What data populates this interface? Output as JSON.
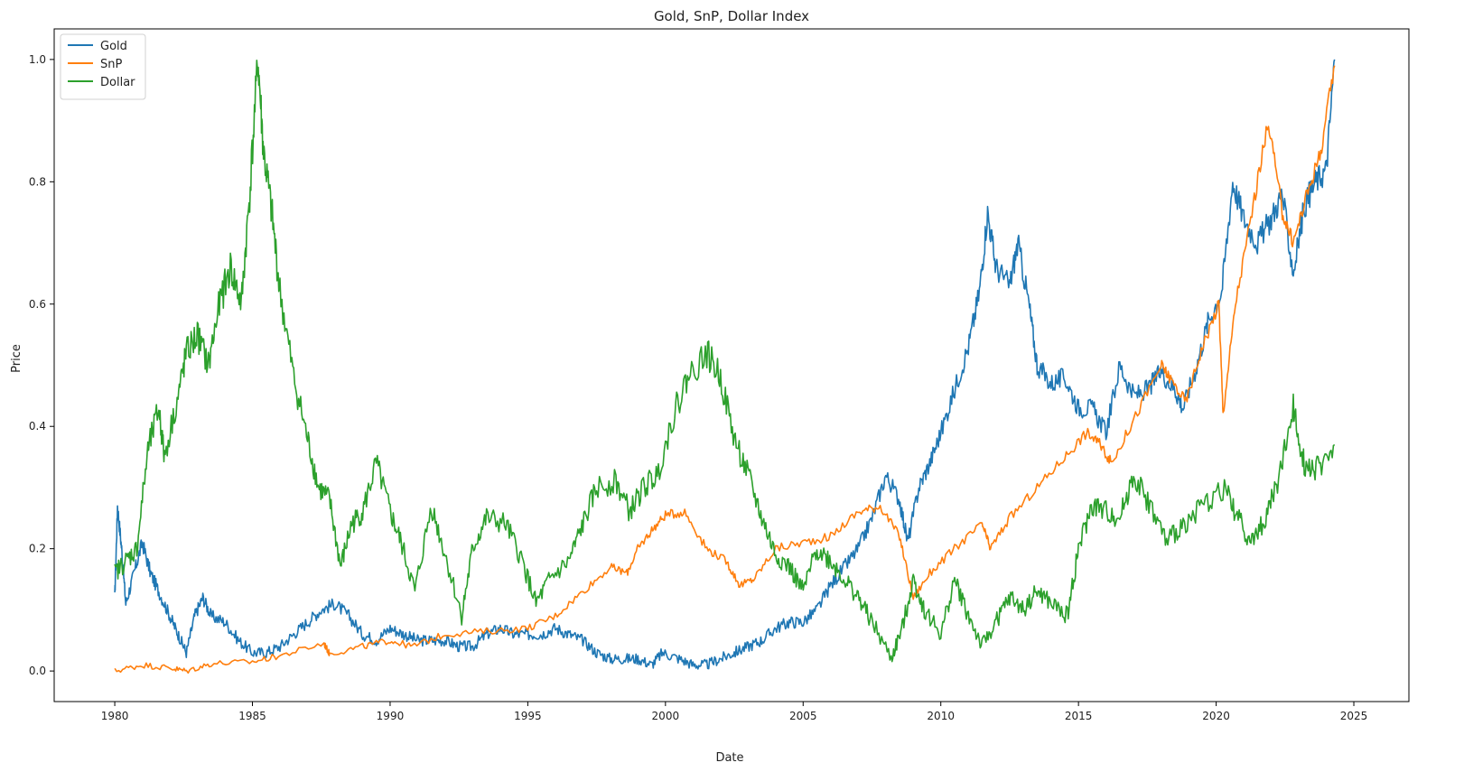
{
  "chart_data": {
    "type": "line",
    "title": "Gold, SnP, Dollar Index",
    "xlabel": "Date",
    "ylabel": "Price",
    "xlim": [
      1977.8,
      2027.0
    ],
    "ylim": [
      -0.05,
      1.05
    ],
    "xticks": [
      1980,
      1985,
      1990,
      1995,
      2000,
      2005,
      2010,
      2015,
      2020,
      2025
    ],
    "yticks": [
      0.0,
      0.2,
      0.4,
      0.6,
      0.8,
      1.0
    ],
    "grid": false,
    "legend_position": "top-left",
    "series": [
      {
        "name": "Gold",
        "color": "#1f77b4",
        "points": [
          [
            1980.0,
            0.12
          ],
          [
            1980.1,
            0.27
          ],
          [
            1980.25,
            0.2
          ],
          [
            1980.4,
            0.11
          ],
          [
            1980.7,
            0.16
          ],
          [
            1981.0,
            0.21
          ],
          [
            1981.3,
            0.16
          ],
          [
            1981.6,
            0.13
          ],
          [
            1982.0,
            0.09
          ],
          [
            1982.3,
            0.06
          ],
          [
            1982.6,
            0.03
          ],
          [
            1982.9,
            0.09
          ],
          [
            1983.2,
            0.12
          ],
          [
            1983.5,
            0.09
          ],
          [
            1984.0,
            0.08
          ],
          [
            1984.5,
            0.05
          ],
          [
            1985.0,
            0.03
          ],
          [
            1985.5,
            0.03
          ],
          [
            1986.0,
            0.04
          ],
          [
            1986.5,
            0.06
          ],
          [
            1987.0,
            0.08
          ],
          [
            1987.5,
            0.1
          ],
          [
            1988.0,
            0.11
          ],
          [
            1988.5,
            0.09
          ],
          [
            1989.0,
            0.06
          ],
          [
            1989.5,
            0.05
          ],
          [
            1990.0,
            0.07
          ],
          [
            1990.5,
            0.06
          ],
          [
            1991.0,
            0.05
          ],
          [
            1991.5,
            0.05
          ],
          [
            1992.0,
            0.05
          ],
          [
            1992.5,
            0.04
          ],
          [
            1993.0,
            0.04
          ],
          [
            1993.5,
            0.06
          ],
          [
            1994.0,
            0.07
          ],
          [
            1994.5,
            0.06
          ],
          [
            1995.0,
            0.06
          ],
          [
            1995.5,
            0.06
          ],
          [
            1996.0,
            0.07
          ],
          [
            1996.5,
            0.06
          ],
          [
            1997.0,
            0.05
          ],
          [
            1997.5,
            0.03
          ],
          [
            1998.0,
            0.02
          ],
          [
            1998.5,
            0.02
          ],
          [
            1999.0,
            0.02
          ],
          [
            1999.5,
            0.01
          ],
          [
            1999.9,
            0.03
          ],
          [
            2000.5,
            0.02
          ],
          [
            2001.0,
            0.01
          ],
          [
            2001.5,
            0.01
          ],
          [
            2002.0,
            0.02
          ],
          [
            2002.5,
            0.03
          ],
          [
            2003.0,
            0.04
          ],
          [
            2003.5,
            0.05
          ],
          [
            2004.0,
            0.07
          ],
          [
            2004.5,
            0.08
          ],
          [
            2005.0,
            0.08
          ],
          [
            2005.5,
            0.1
          ],
          [
            2006.0,
            0.14
          ],
          [
            2006.5,
            0.17
          ],
          [
            2007.0,
            0.2
          ],
          [
            2007.5,
            0.25
          ],
          [
            2008.0,
            0.32
          ],
          [
            2008.5,
            0.28
          ],
          [
            2008.8,
            0.21
          ],
          [
            2009.2,
            0.3
          ],
          [
            2009.6,
            0.34
          ],
          [
            2010.0,
            0.39
          ],
          [
            2010.5,
            0.46
          ],
          [
            2011.0,
            0.53
          ],
          [
            2011.4,
            0.62
          ],
          [
            2011.7,
            0.75
          ],
          [
            2012.0,
            0.66
          ],
          [
            2012.5,
            0.63
          ],
          [
            2012.8,
            0.7
          ],
          [
            2013.2,
            0.6
          ],
          [
            2013.5,
            0.5
          ],
          [
            2014.0,
            0.47
          ],
          [
            2014.5,
            0.48
          ],
          [
            2015.0,
            0.43
          ],
          [
            2015.5,
            0.43
          ],
          [
            2016.0,
            0.39
          ],
          [
            2016.5,
            0.5
          ],
          [
            2017.0,
            0.45
          ],
          [
            2017.5,
            0.46
          ],
          [
            2018.0,
            0.49
          ],
          [
            2018.5,
            0.46
          ],
          [
            2018.8,
            0.43
          ],
          [
            2019.3,
            0.5
          ],
          [
            2019.7,
            0.57
          ],
          [
            2020.2,
            0.62
          ],
          [
            2020.6,
            0.8
          ],
          [
            2021.0,
            0.74
          ],
          [
            2021.5,
            0.7
          ],
          [
            2022.0,
            0.74
          ],
          [
            2022.4,
            0.78
          ],
          [
            2022.8,
            0.65
          ],
          [
            2023.2,
            0.76
          ],
          [
            2023.6,
            0.8
          ],
          [
            2024.0,
            0.82
          ],
          [
            2024.3,
            1.0
          ]
        ]
      },
      {
        "name": "SnP",
        "color": "#ff7f0e",
        "points": [
          [
            1980.0,
            0.0
          ],
          [
            1981.0,
            0.01
          ],
          [
            1982.0,
            0.005
          ],
          [
            1982.6,
            0.0
          ],
          [
            1983.5,
            0.012
          ],
          [
            1985.0,
            0.015
          ],
          [
            1986.0,
            0.025
          ],
          [
            1987.6,
            0.045
          ],
          [
            1987.8,
            0.028
          ],
          [
            1989.0,
            0.04
          ],
          [
            1990.0,
            0.05
          ],
          [
            1990.8,
            0.04
          ],
          [
            1992.0,
            0.06
          ],
          [
            1993.5,
            0.065
          ],
          [
            1995.0,
            0.07
          ],
          [
            1996.0,
            0.09
          ],
          [
            1997.0,
            0.13
          ],
          [
            1998.0,
            0.17
          ],
          [
            1998.6,
            0.16
          ],
          [
            1999.0,
            0.2
          ],
          [
            1999.5,
            0.23
          ],
          [
            2000.0,
            0.255
          ],
          [
            2000.7,
            0.26
          ],
          [
            2001.5,
            0.2
          ],
          [
            2002.2,
            0.18
          ],
          [
            2002.7,
            0.14
          ],
          [
            2003.2,
            0.15
          ],
          [
            2004.0,
            0.2
          ],
          [
            2005.0,
            0.21
          ],
          [
            2006.0,
            0.22
          ],
          [
            2007.0,
            0.26
          ],
          [
            2007.8,
            0.27
          ],
          [
            2008.5,
            0.22
          ],
          [
            2009.0,
            0.12
          ],
          [
            2009.6,
            0.16
          ],
          [
            2010.5,
            0.2
          ],
          [
            2011.5,
            0.24
          ],
          [
            2011.8,
            0.2
          ],
          [
            2012.5,
            0.25
          ],
          [
            2013.5,
            0.3
          ],
          [
            2014.5,
            0.35
          ],
          [
            2015.3,
            0.39
          ],
          [
            2015.8,
            0.37
          ],
          [
            2016.2,
            0.34
          ],
          [
            2017.0,
            0.41
          ],
          [
            2018.0,
            0.5
          ],
          [
            2018.3,
            0.48
          ],
          [
            2018.9,
            0.44
          ],
          [
            2019.5,
            0.53
          ],
          [
            2020.1,
            0.6
          ],
          [
            2020.25,
            0.42
          ],
          [
            2020.7,
            0.6
          ],
          [
            2021.3,
            0.75
          ],
          [
            2021.9,
            0.9
          ],
          [
            2022.4,
            0.75
          ],
          [
            2022.8,
            0.7
          ],
          [
            2023.3,
            0.78
          ],
          [
            2023.8,
            0.85
          ],
          [
            2024.3,
            0.99
          ]
        ]
      },
      {
        "name": "Dollar",
        "color": "#2ca02c",
        "points": [
          [
            1980.0,
            0.16
          ],
          [
            1980.4,
            0.18
          ],
          [
            1980.8,
            0.2
          ],
          [
            1981.2,
            0.36
          ],
          [
            1981.6,
            0.43
          ],
          [
            1981.8,
            0.35
          ],
          [
            1982.3,
            0.45
          ],
          [
            1982.6,
            0.52
          ],
          [
            1983.0,
            0.55
          ],
          [
            1983.4,
            0.5
          ],
          [
            1983.8,
            0.6
          ],
          [
            1984.2,
            0.66
          ],
          [
            1984.6,
            0.6
          ],
          [
            1984.9,
            0.78
          ],
          [
            1985.2,
            1.0
          ],
          [
            1985.4,
            0.85
          ],
          [
            1985.7,
            0.75
          ],
          [
            1986.0,
            0.62
          ],
          [
            1986.5,
            0.48
          ],
          [
            1987.0,
            0.38
          ],
          [
            1987.4,
            0.3
          ],
          [
            1987.8,
            0.28
          ],
          [
            1988.2,
            0.17
          ],
          [
            1988.6,
            0.24
          ],
          [
            1989.0,
            0.26
          ],
          [
            1989.5,
            0.34
          ],
          [
            1990.0,
            0.26
          ],
          [
            1990.4,
            0.21
          ],
          [
            1990.9,
            0.13
          ],
          [
            1991.5,
            0.27
          ],
          [
            1992.0,
            0.19
          ],
          [
            1992.6,
            0.09
          ],
          [
            1993.0,
            0.2
          ],
          [
            1993.5,
            0.25
          ],
          [
            1994.2,
            0.24
          ],
          [
            1994.8,
            0.18
          ],
          [
            1995.3,
            0.11
          ],
          [
            1995.8,
            0.15
          ],
          [
            1996.5,
            0.18
          ],
          [
            1997.0,
            0.24
          ],
          [
            1997.5,
            0.3
          ],
          [
            1998.2,
            0.31
          ],
          [
            1998.7,
            0.26
          ],
          [
            1999.2,
            0.3
          ],
          [
            1999.7,
            0.32
          ],
          [
            2000.3,
            0.42
          ],
          [
            2000.8,
            0.48
          ],
          [
            2001.5,
            0.52
          ],
          [
            2002.0,
            0.48
          ],
          [
            2002.5,
            0.38
          ],
          [
            2003.0,
            0.32
          ],
          [
            2003.5,
            0.25
          ],
          [
            2004.0,
            0.19
          ],
          [
            2004.5,
            0.17
          ],
          [
            2005.0,
            0.13
          ],
          [
            2005.5,
            0.2
          ],
          [
            2006.0,
            0.18
          ],
          [
            2006.5,
            0.15
          ],
          [
            2007.0,
            0.12
          ],
          [
            2007.5,
            0.08
          ],
          [
            2008.2,
            0.02
          ],
          [
            2008.6,
            0.07
          ],
          [
            2009.0,
            0.15
          ],
          [
            2009.4,
            0.1
          ],
          [
            2010.0,
            0.06
          ],
          [
            2010.5,
            0.15
          ],
          [
            2011.0,
            0.09
          ],
          [
            2011.5,
            0.04
          ],
          [
            2012.0,
            0.08
          ],
          [
            2012.5,
            0.12
          ],
          [
            2013.0,
            0.1
          ],
          [
            2013.5,
            0.13
          ],
          [
            2014.0,
            0.11
          ],
          [
            2014.6,
            0.09
          ],
          [
            2015.0,
            0.2
          ],
          [
            2015.5,
            0.27
          ],
          [
            2016.0,
            0.26
          ],
          [
            2016.5,
            0.25
          ],
          [
            2017.0,
            0.32
          ],
          [
            2017.6,
            0.27
          ],
          [
            2018.2,
            0.21
          ],
          [
            2018.8,
            0.24
          ],
          [
            2019.5,
            0.27
          ],
          [
            2020.3,
            0.3
          ],
          [
            2020.8,
            0.25
          ],
          [
            2021.3,
            0.21
          ],
          [
            2021.8,
            0.25
          ],
          [
            2022.3,
            0.32
          ],
          [
            2022.8,
            0.43
          ],
          [
            2023.2,
            0.34
          ],
          [
            2023.7,
            0.33
          ],
          [
            2024.3,
            0.37
          ]
        ]
      }
    ]
  }
}
